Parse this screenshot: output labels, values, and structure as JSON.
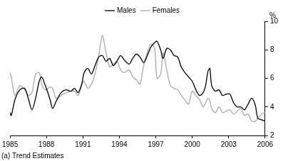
{
  "chart_data": {
    "type": "line",
    "y_label": "%",
    "annotations": [
      "(a) Trend Estimates"
    ],
    "x": [
      1985.0,
      1985.1,
      1985.4,
      1985.8,
      1986.2,
      1986.5,
      1986.8,
      1987.1,
      1987.4,
      1987.6,
      1987.9,
      1988.3,
      1988.5,
      1988.8,
      1989.2,
      1989.6,
      1990.0,
      1990.3,
      1990.6,
      1990.9,
      1991.1,
      1991.4,
      1991.7,
      1992.0,
      1992.3,
      1992.6,
      1992.9,
      1993.2,
      1993.5,
      1993.8,
      1994.1,
      1994.4,
      1994.8,
      1995.1,
      1995.4,
      1995.7,
      1996.0,
      1996.3,
      1996.6,
      1996.9,
      1997.1,
      1997.4,
      1997.6,
      1997.9,
      1998.2,
      1998.5,
      1998.8,
      1999.1,
      1999.4,
      1999.7,
      2000.0,
      2000.3,
      2000.6,
      2000.9,
      2001.1,
      2001.3,
      2001.45,
      2001.6,
      2001.9,
      2002.2,
      2002.5,
      2002.8,
      2003.1,
      2003.4,
      2003.7,
      2004.0,
      2004.3,
      2004.6,
      2004.9,
      2005.2,
      2005.4,
      2005.7,
      2006.0
    ],
    "series": [
      {
        "name": "Males",
        "color": "#000000",
        "values": [
          3.6,
          3.4,
          4.5,
          5.2,
          5.3,
          4.6,
          3.8,
          4.6,
          5.8,
          6.1,
          5.5,
          4.5,
          3.9,
          4.4,
          5.0,
          5.2,
          5.1,
          5.3,
          5.0,
          5.6,
          6.4,
          6.7,
          6.3,
          6.9,
          7.5,
          7.6,
          7.2,
          7.4,
          6.9,
          7.2,
          7.6,
          7.3,
          7.0,
          7.4,
          7.7,
          7.5,
          7.1,
          7.6,
          8.2,
          8.5,
          8.6,
          8.0,
          7.4,
          8.1,
          8.0,
          7.6,
          7.5,
          6.8,
          6.4,
          6.1,
          5.8,
          5.2,
          4.8,
          5.0,
          5.5,
          6.5,
          6.7,
          5.5,
          5.1,
          5.2,
          4.8,
          4.9,
          4.9,
          4.3,
          4.0,
          4.0,
          3.8,
          4.2,
          4.6,
          4.1,
          3.2,
          3.1,
          3.0
        ]
      },
      {
        "name": "Females",
        "color": "#aaaaaa",
        "values": [
          6.4,
          6.1,
          4.8,
          5.5,
          5.2,
          4.8,
          5.0,
          6.3,
          6.4,
          5.6,
          5.2,
          5.4,
          5.3,
          4.6,
          4.8,
          5.0,
          5.1,
          5.1,
          4.8,
          5.5,
          5.8,
          5.3,
          5.6,
          6.3,
          7.6,
          9.0,
          7.8,
          6.8,
          7.0,
          7.2,
          6.6,
          6.4,
          6.6,
          6.1,
          5.9,
          5.6,
          6.9,
          7.8,
          8.4,
          8.1,
          6.0,
          6.3,
          7.8,
          6.6,
          5.5,
          5.3,
          5.2,
          4.8,
          4.5,
          4.2,
          5.1,
          4.8,
          4.5,
          4.0,
          4.3,
          4.6,
          4.4,
          3.9,
          3.6,
          4.0,
          3.6,
          3.7,
          3.8,
          3.5,
          3.7,
          3.9,
          3.4,
          3.5,
          3.0,
          3.0,
          3.2,
          3.5,
          3.6
        ]
      }
    ],
    "xlim": [
      1985,
      2006
    ],
    "xticks": [
      1985,
      1988,
      1991,
      1994,
      1997,
      2000,
      2003,
      2006
    ],
    "ylim": [
      2,
      10
    ],
    "yticks": [
      2,
      4,
      6,
      8,
      10
    ],
    "grid": false,
    "legend": "top"
  }
}
